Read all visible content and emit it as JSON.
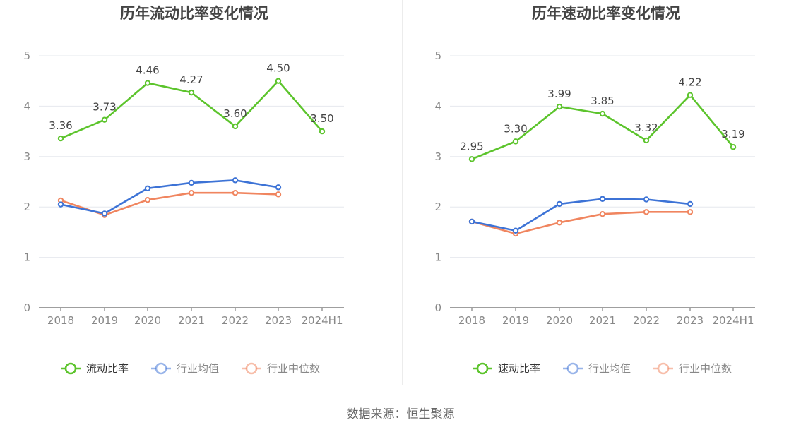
{
  "source_text": "数据来源：恒生聚源",
  "colors": {
    "main": "#5cc42c",
    "avg": "#3d73d6",
    "median": "#f0855f",
    "grid": "#e6e8ee",
    "axis": "#666666",
    "tick": "#888888"
  },
  "chart_data": [
    {
      "type": "line",
      "title": "历年流动比率变化情况",
      "categories": [
        "2018",
        "2019",
        "2020",
        "2021",
        "2022",
        "2023",
        "2024H1"
      ],
      "ylim": [
        0,
        5
      ],
      "yticks": [
        0,
        1,
        2,
        3,
        4,
        5
      ],
      "grid": true,
      "legend_position": "bottom-center",
      "series": [
        {
          "name": "流动比率",
          "color": "#5cc42c",
          "values": [
            3.36,
            3.73,
            4.46,
            4.27,
            3.6,
            4.5,
            3.5
          ],
          "labels": [
            "3.36",
            "3.73",
            "4.46",
            "4.27",
            "3.60",
            "4.50",
            "3.50"
          ]
        },
        {
          "name": "行业均值",
          "color": "#3d73d6",
          "values": [
            2.05,
            1.87,
            2.37,
            2.48,
            2.53,
            2.39,
            null
          ]
        },
        {
          "name": "行业中位数",
          "color": "#f0855f",
          "values": [
            2.13,
            1.84,
            2.14,
            2.28,
            2.28,
            2.25,
            null
          ]
        }
      ]
    },
    {
      "type": "line",
      "title": "历年速动比率变化情况",
      "categories": [
        "2018",
        "2019",
        "2020",
        "2021",
        "2022",
        "2023",
        "2024H1"
      ],
      "ylim": [
        0,
        5
      ],
      "yticks": [
        0,
        1,
        2,
        3,
        4,
        5
      ],
      "grid": true,
      "legend_position": "bottom-center",
      "series": [
        {
          "name": "速动比率",
          "color": "#5cc42c",
          "values": [
            2.95,
            3.3,
            3.99,
            3.85,
            3.32,
            4.22,
            3.19
          ],
          "labels": [
            "2.95",
            "3.30",
            "3.99",
            "3.85",
            "3.32",
            "4.22",
            "3.19"
          ]
        },
        {
          "name": "行业均值",
          "color": "#3d73d6",
          "values": [
            1.71,
            1.53,
            2.06,
            2.16,
            2.15,
            2.06,
            null
          ]
        },
        {
          "name": "行业中位数",
          "color": "#f0855f",
          "values": [
            1.71,
            1.47,
            1.69,
            1.86,
            1.9,
            1.9,
            null
          ]
        }
      ]
    }
  ]
}
